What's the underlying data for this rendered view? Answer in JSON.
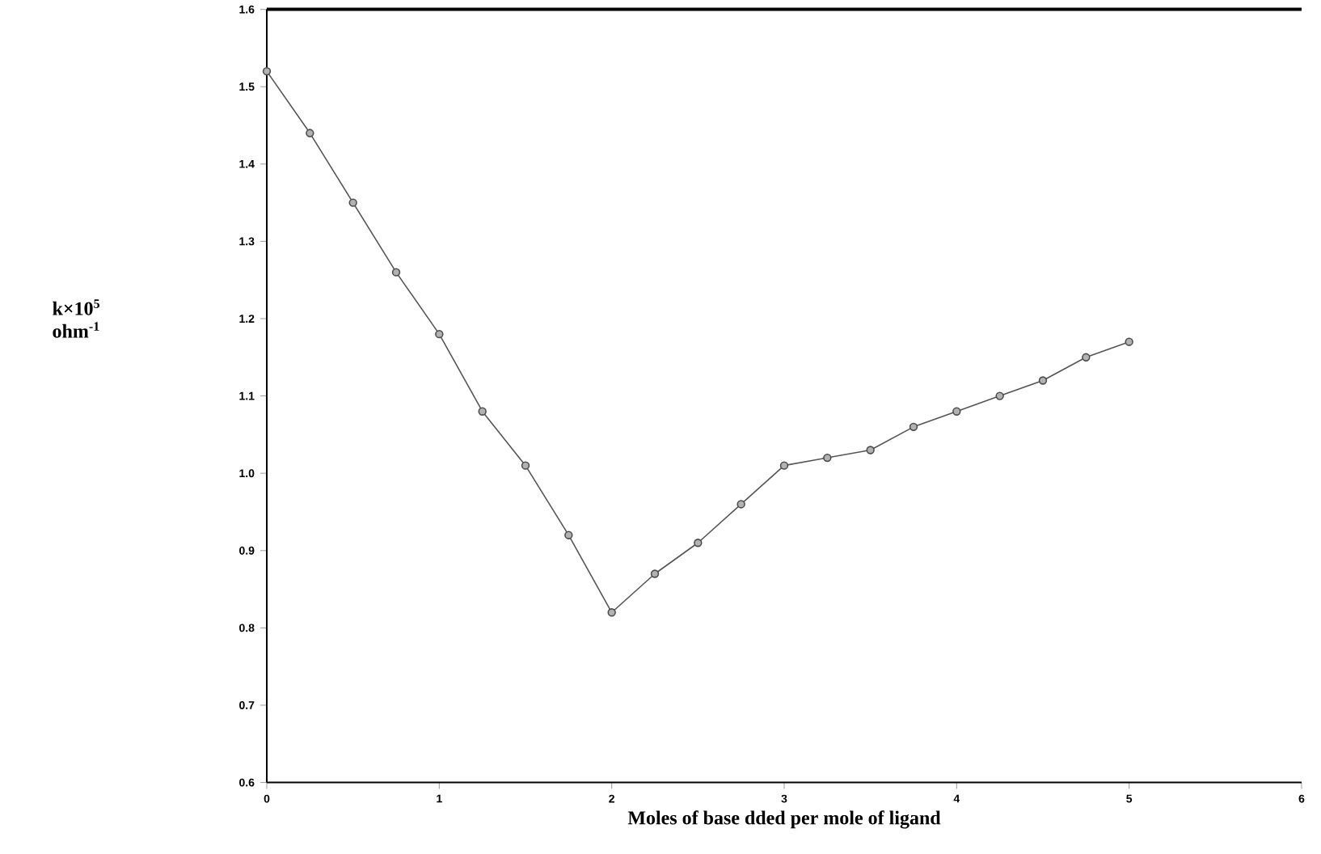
{
  "chart_data": {
    "type": "line",
    "xlabel": "Moles of base dded per mole of ligand",
    "ylabel": "k×10$^{5}$ ohm$^{-1}$",
    "x": [
      0,
      0.25,
      0.5,
      0.75,
      1,
      1.25,
      1.5,
      1.75,
      2,
      2.25,
      2.5,
      2.75,
      3,
      3.25,
      3.5,
      3.75,
      4,
      4.25,
      4.5,
      4.75,
      5
    ],
    "series": [
      {
        "color": "#555555",
        "values": [
          1.52,
          1.44,
          1.35,
          1.26,
          1.18,
          1.08,
          1.01,
          0.92,
          0.82,
          0.87,
          0.91,
          0.96,
          1.01,
          1.02,
          1.03,
          1.06,
          1.08,
          1.1,
          1.12,
          1.15,
          1.17
        ]
      }
    ],
    "xlim": [
      0,
      6
    ],
    "xticks": [
      0,
      1,
      2,
      3,
      4,
      5,
      6
    ],
    "ylim": [
      0.6,
      1.6
    ],
    "yticks": [
      0.6,
      0.7,
      0.8,
      0.9,
      {
        "value": 1.0,
        "label": "1.0"
      },
      1.1,
      1.2,
      1.3,
      1.4,
      1.5,
      1.6
    ],
    "grid": false,
    "marker": "circle",
    "line_style": "solid"
  }
}
